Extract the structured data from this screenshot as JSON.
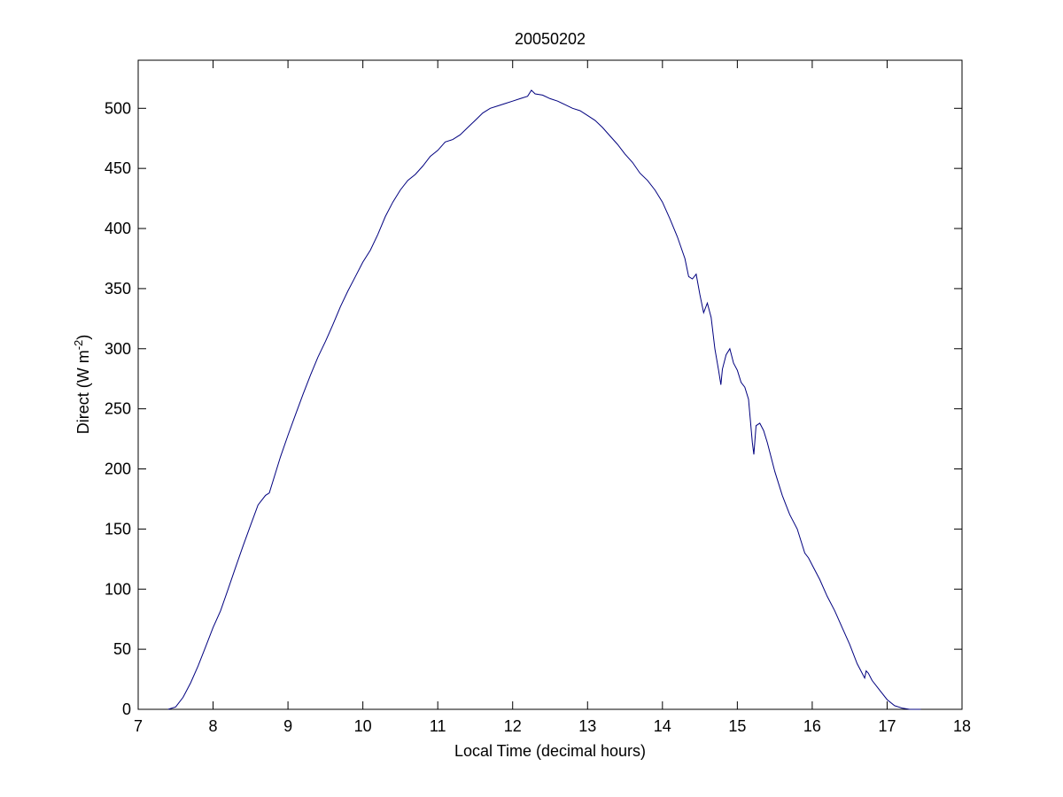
{
  "chart_data": {
    "type": "line",
    "title": "20050202",
    "xlabel": "Local Time (decimal hours)",
    "ylabel": {
      "main": "Direct (W m",
      "superscript": "-2",
      "close": ")"
    },
    "xlim": [
      7,
      18
    ],
    "ylim": [
      0,
      540
    ],
    "xticks": [
      7,
      8,
      9,
      10,
      11,
      12,
      13,
      14,
      15,
      16,
      17,
      18
    ],
    "yticks": [
      0,
      50,
      100,
      150,
      200,
      250,
      300,
      350,
      400,
      450,
      500
    ],
    "grid": false,
    "line_color": "#00007f",
    "series": [
      {
        "x": [
          7.4,
          7.5,
          7.6,
          7.7,
          7.8,
          7.9,
          8.0,
          8.1,
          8.2,
          8.3,
          8.4,
          8.5,
          8.6,
          8.7,
          8.75,
          8.8,
          8.9,
          9.0,
          9.1,
          9.2,
          9.3,
          9.4,
          9.5,
          9.6,
          9.7,
          9.8,
          9.9,
          10.0,
          10.1,
          10.2,
          10.3,
          10.4,
          10.5,
          10.6,
          10.7,
          10.8,
          10.9,
          11.0,
          11.1,
          11.2,
          11.3,
          11.4,
          11.5,
          11.6,
          11.7,
          11.8,
          11.9,
          12.0,
          12.1,
          12.2,
          12.25,
          12.3,
          12.4,
          12.5,
          12.6,
          12.7,
          12.8,
          12.9,
          13.0,
          13.1,
          13.2,
          13.3,
          13.4,
          13.5,
          13.6,
          13.7,
          13.8,
          13.9,
          14.0,
          14.1,
          14.2,
          14.3,
          14.35,
          14.4,
          14.45,
          14.5,
          14.55,
          14.6,
          14.65,
          14.7,
          14.75,
          14.78,
          14.8,
          14.85,
          14.9,
          14.95,
          15.0,
          15.05,
          15.1,
          15.15,
          15.2,
          15.22,
          15.25,
          15.3,
          15.35,
          15.4,
          15.5,
          15.6,
          15.7,
          15.8,
          15.9,
          15.95,
          16.0,
          16.1,
          16.2,
          16.3,
          16.4,
          16.5,
          16.6,
          16.7,
          16.72,
          16.75,
          16.8,
          16.9,
          17.0,
          17.1,
          17.2,
          17.3,
          17.45
        ],
        "y": [
          0,
          2,
          10,
          22,
          36,
          52,
          68,
          82,
          100,
          118,
          136,
          153,
          170,
          178,
          180,
          190,
          210,
          228,
          245,
          262,
          278,
          293,
          306,
          320,
          335,
          348,
          360,
          372,
          382,
          395,
          410,
          422,
          432,
          440,
          445,
          452,
          460,
          465,
          472,
          474,
          478,
          484,
          490,
          496,
          500,
          502,
          504,
          506,
          508,
          510,
          515,
          512,
          511,
          508,
          506,
          503,
          500,
          498,
          494,
          490,
          484,
          477,
          470,
          462,
          455,
          446,
          440,
          432,
          422,
          408,
          393,
          375,
          360,
          358,
          362,
          345,
          330,
          338,
          326,
          300,
          282,
          270,
          283,
          295,
          300,
          288,
          282,
          272,
          268,
          258,
          222,
          212,
          236,
          238,
          232,
          222,
          198,
          178,
          162,
          150,
          130,
          126,
          120,
          108,
          94,
          82,
          68,
          54,
          38,
          26,
          32,
          30,
          24,
          16,
          8,
          3,
          1,
          0,
          0
        ]
      }
    ]
  }
}
